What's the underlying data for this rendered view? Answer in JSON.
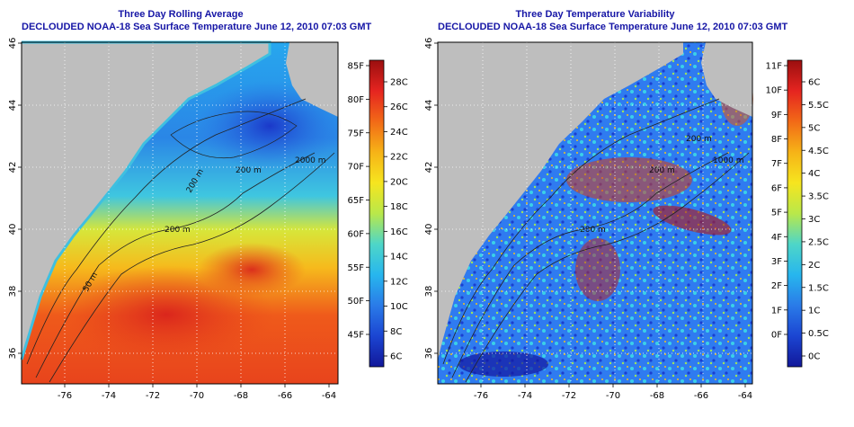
{
  "left_panel": {
    "title": "Three Day Rolling Average",
    "subtitle": "DECLOUDED NOAA-18 Sea Surface Temperature June 12, 2010 07:03 GMT",
    "lon_ticks": [
      "-76",
      "-74",
      "-72",
      "-70",
      "-68",
      "-66",
      "-64"
    ],
    "lat_ticks": [
      "36",
      "38",
      "40",
      "42",
      "44",
      "46"
    ],
    "contour_labels": [
      "50 m",
      "200 m",
      "200 m",
      "200 m",
      "2000 m"
    ],
    "colorbar": {
      "fahrenheit": [
        "85F",
        "80F",
        "75F",
        "70F",
        "65F",
        "60F",
        "55F",
        "50F",
        "45F"
      ],
      "celsius": [
        "28C",
        "26C",
        "24C",
        "22C",
        "20C",
        "18C",
        "16C",
        "14C",
        "12C",
        "10C",
        "8C",
        "6C"
      ],
      "colors": [
        "#9b0f0f",
        "#e52420",
        "#f26a17",
        "#f6b317",
        "#f6e51f",
        "#b9e84a",
        "#4ed6c8",
        "#27b6ee",
        "#2a7be8",
        "#1b45d2",
        "#12189a"
      ]
    }
  },
  "right_panel": {
    "title": "Three Day Temperature Variability",
    "subtitle": "DECLOUDED NOAA-18 Sea Surface Temperature June 12, 2010 07:03 GMT",
    "lon_ticks": [
      "-76",
      "-74",
      "-72",
      "-70",
      "-68",
      "-66",
      "-64"
    ],
    "lat_ticks": [
      "36",
      "38",
      "40",
      "42",
      "44",
      "46"
    ],
    "contour_labels": [
      "200 m",
      "200 m",
      "1000 m",
      "200 m"
    ],
    "colorbar": {
      "fahrenheit": [
        "11F",
        "10F",
        "9F",
        "8F",
        "7F",
        "6F",
        "5F",
        "4F",
        "3F",
        "2F",
        "1F",
        "0F"
      ],
      "celsius": [
        "6C",
        "5.5C",
        "5C",
        "4.5C",
        "4C",
        "3.5C",
        "3C",
        "2.5C",
        "2C",
        "1.5C",
        "1C",
        "0.5C",
        "0C"
      ],
      "colors": [
        "#9b0f0f",
        "#e52420",
        "#f26a17",
        "#f6b317",
        "#f6e51f",
        "#b9e84a",
        "#4ed6c8",
        "#27b6ee",
        "#2a7be8",
        "#1b45d2",
        "#12189a"
      ]
    }
  },
  "colors": {
    "title": "#1616a6",
    "land": "#bebebe",
    "contour": "#222222"
  }
}
